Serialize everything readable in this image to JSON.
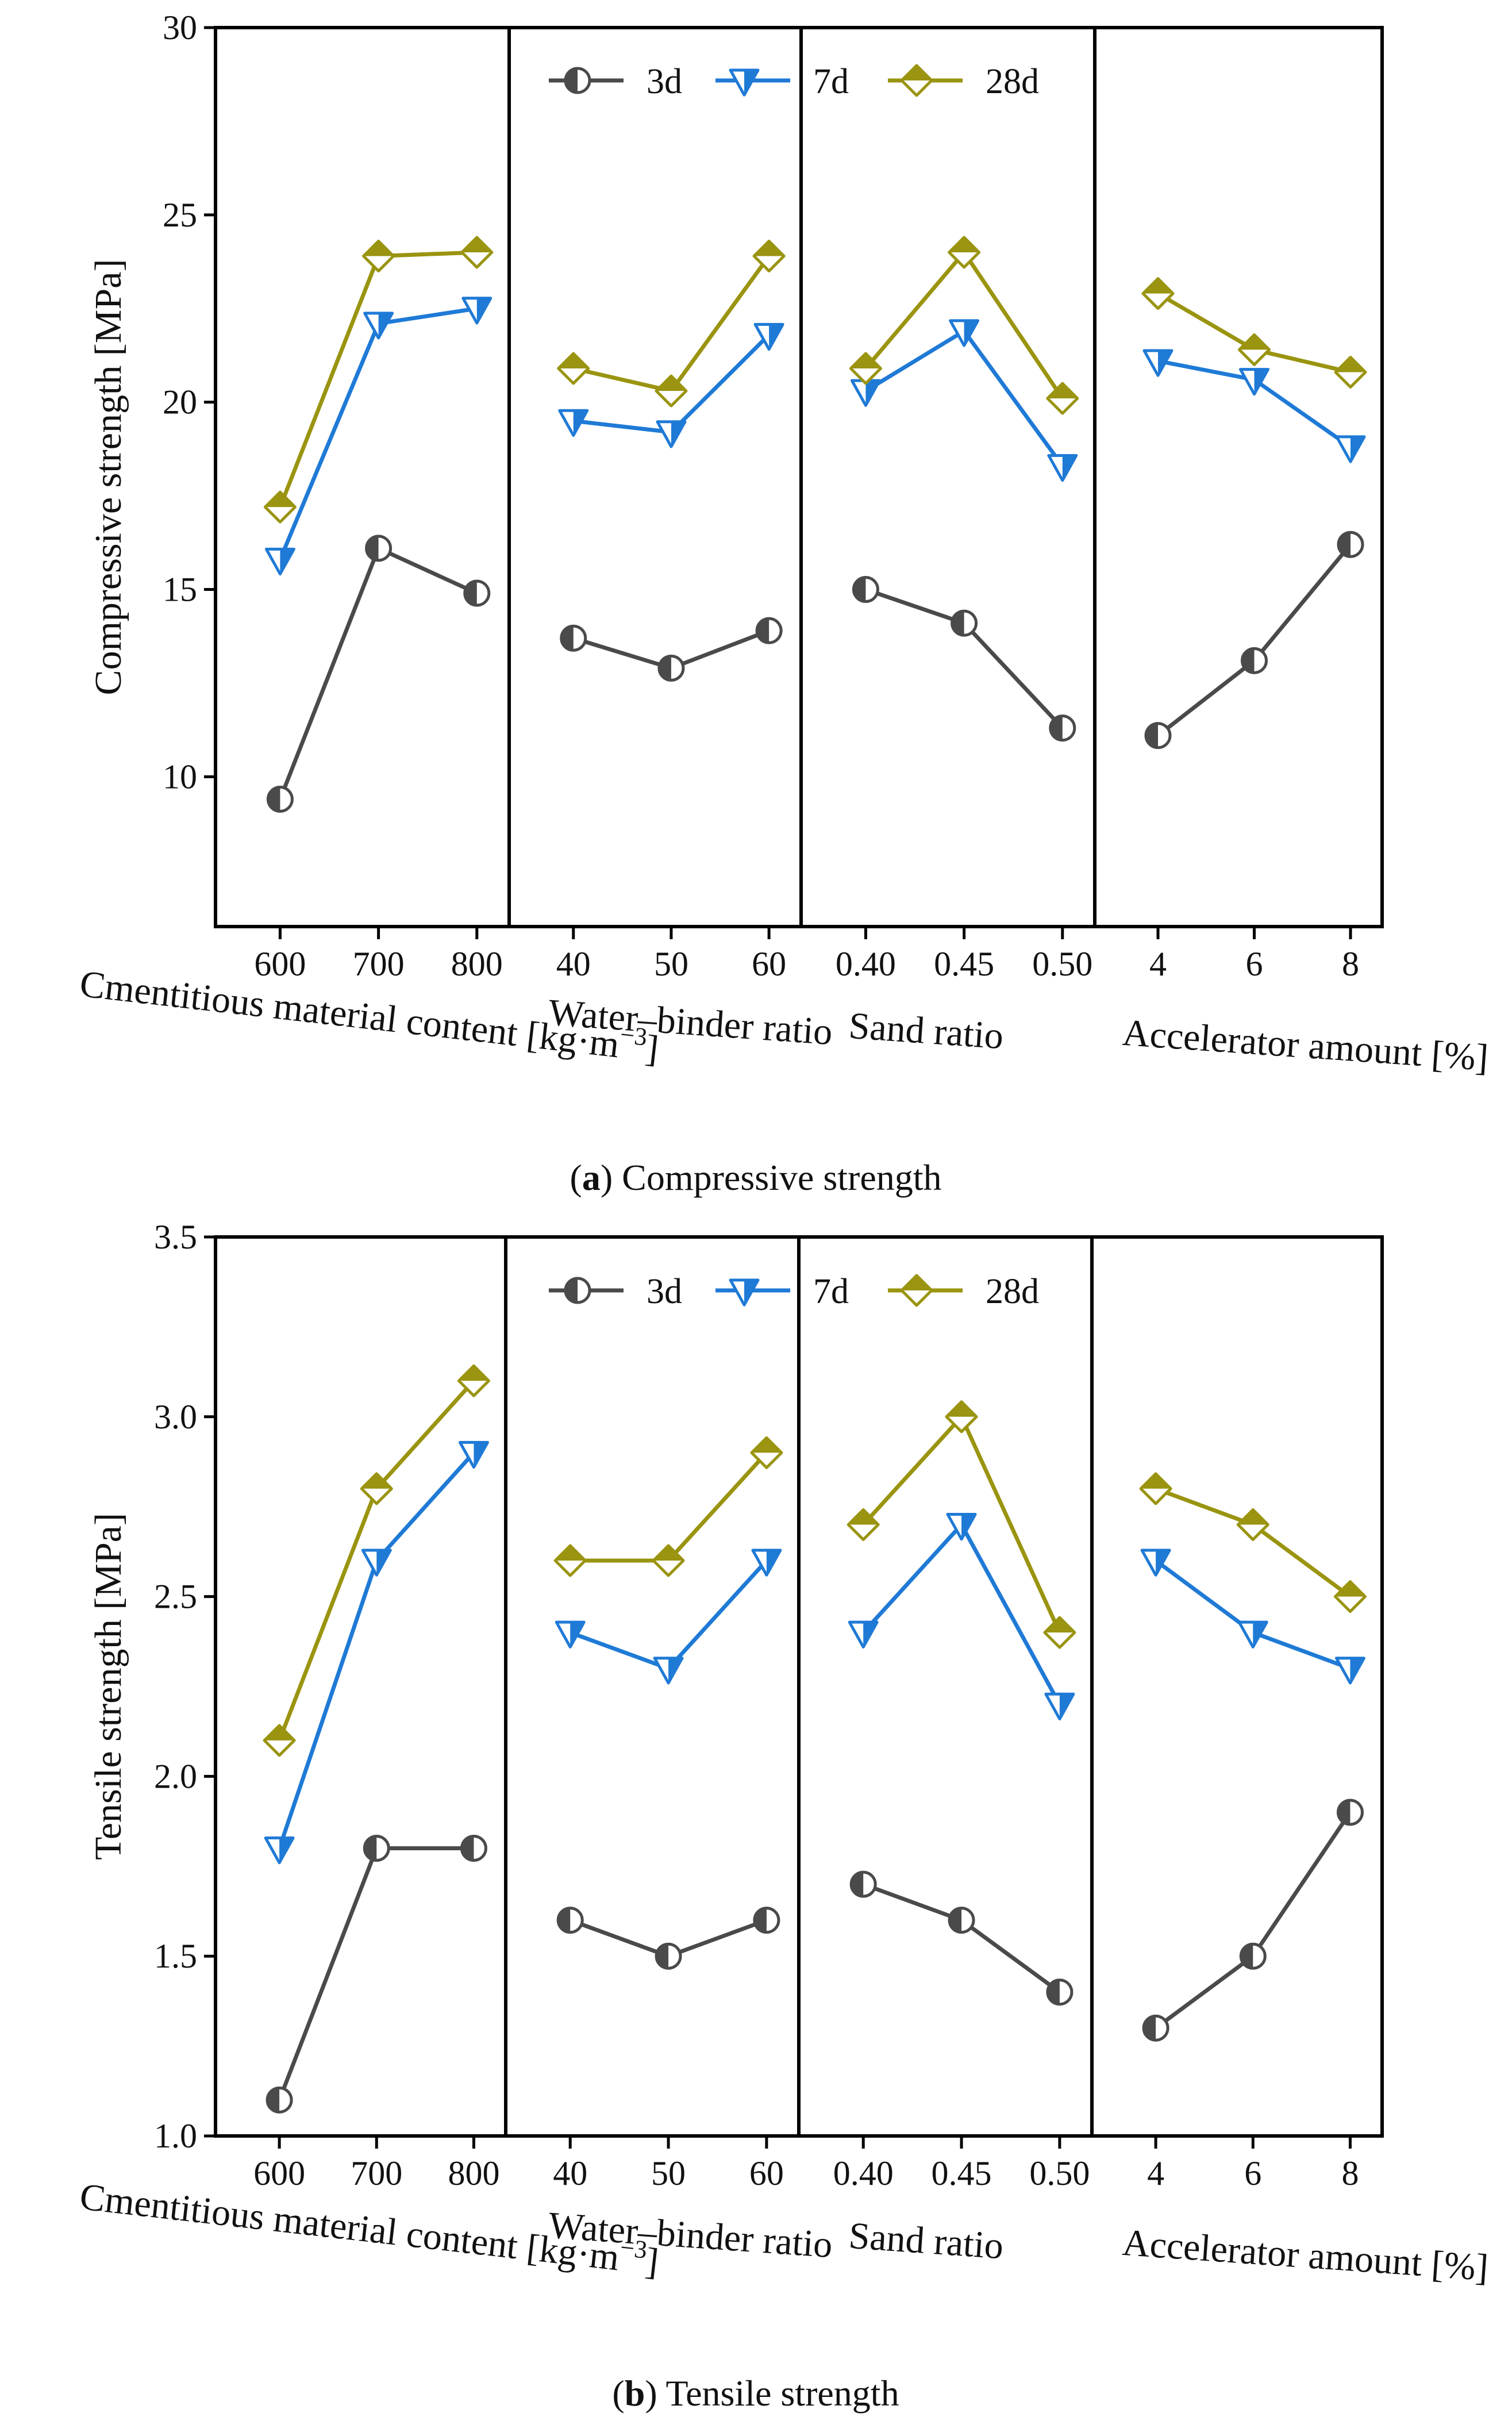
{
  "chart_data": [
    {
      "type": "line",
      "ylabel": "Compressive strength [MPa]",
      "ylim": [
        6,
        30
      ],
      "yticks": [
        "10",
        "15",
        "20",
        "25",
        "30"
      ],
      "caption_letter": "a",
      "caption_text": "Compressive strength",
      "legend": [
        "3d",
        "7d",
        "28d"
      ],
      "groups": [
        {
          "xlabel": "Cmentitious material content [kg·m",
          "xlabel_sup": "−3",
          "xlabel_end": "]",
          "categories": [
            "600",
            "700",
            "800"
          ],
          "series": [
            {
              "name": "3d",
              "values": [
                9.4,
                16.1,
                14.9
              ]
            },
            {
              "name": "7d",
              "values": [
                15.8,
                22.1,
                22.5
              ]
            },
            {
              "name": "28d",
              "values": [
                17.2,
                23.9,
                24.0
              ]
            }
          ]
        },
        {
          "xlabel": "Water–binder ratio",
          "categories": [
            "40",
            "50",
            "60"
          ],
          "series": [
            {
              "name": "3d",
              "values": [
                13.7,
                12.9,
                13.9
              ]
            },
            {
              "name": "7d",
              "values": [
                19.5,
                19.2,
                21.8
              ]
            },
            {
              "name": "28d",
              "values": [
                20.9,
                20.3,
                23.9
              ]
            }
          ]
        },
        {
          "xlabel": "Sand ratio",
          "categories": [
            "0.40",
            "0.45",
            "0.50"
          ],
          "series": [
            {
              "name": "3d",
              "values": [
                15.0,
                14.1,
                11.3
              ]
            },
            {
              "name": "7d",
              "values": [
                20.3,
                21.9,
                18.3
              ]
            },
            {
              "name": "28d",
              "values": [
                20.9,
                24.0,
                20.1
              ]
            }
          ]
        },
        {
          "xlabel": "Accelerator amount [%]",
          "categories": [
            "4",
            "6",
            "8"
          ],
          "series": [
            {
              "name": "3d",
              "values": [
                11.1,
                13.1,
                16.2
              ]
            },
            {
              "name": "7d",
              "values": [
                21.1,
                20.6,
                18.8
              ]
            },
            {
              "name": "28d",
              "values": [
                22.9,
                21.4,
                20.8
              ]
            }
          ]
        }
      ]
    },
    {
      "type": "line",
      "ylabel": "Tensile strength [MPa]",
      "ylim": [
        1.0,
        3.5
      ],
      "yticks": [
        "1.0",
        "1.5",
        "2.0",
        "2.5",
        "3.0",
        "3.5"
      ],
      "caption_letter": "b",
      "caption_text": "Tensile strength",
      "legend": [
        "3d",
        "7d",
        "28d"
      ],
      "groups": [
        {
          "xlabel": "Cmentitious material content [kg·m",
          "xlabel_sup": "−3",
          "xlabel_end": "]",
          "categories": [
            "600",
            "700",
            "800"
          ],
          "series": [
            {
              "name": "3d",
              "values": [
                1.1,
                1.8,
                1.8
              ]
            },
            {
              "name": "7d",
              "values": [
                1.8,
                2.6,
                2.9
              ]
            },
            {
              "name": "28d",
              "values": [
                2.1,
                2.8,
                3.1
              ]
            }
          ]
        },
        {
          "xlabel": "Water–binder ratio",
          "categories": [
            "40",
            "50",
            "60"
          ],
          "series": [
            {
              "name": "3d",
              "values": [
                1.6,
                1.5,
                1.6
              ]
            },
            {
              "name": "7d",
              "values": [
                2.4,
                2.3,
                2.6
              ]
            },
            {
              "name": "28d",
              "values": [
                2.6,
                2.6,
                2.9
              ]
            }
          ]
        },
        {
          "xlabel": "Sand ratio",
          "categories": [
            "0.40",
            "0.45",
            "0.50"
          ],
          "series": [
            {
              "name": "3d",
              "values": [
                1.7,
                1.6,
                1.4
              ]
            },
            {
              "name": "7d",
              "values": [
                2.4,
                2.7,
                2.2
              ]
            },
            {
              "name": "28d",
              "values": [
                2.7,
                3.0,
                2.4
              ]
            }
          ]
        },
        {
          "xlabel": "Accelerator amount [%]",
          "categories": [
            "4",
            "6",
            "8"
          ],
          "series": [
            {
              "name": "3d",
              "values": [
                1.3,
                1.5,
                1.9
              ]
            },
            {
              "name": "7d",
              "values": [
                2.6,
                2.4,
                2.3
              ]
            },
            {
              "name": "28d",
              "values": [
                2.8,
                2.7,
                2.5
              ]
            }
          ]
        }
      ]
    }
  ],
  "colors": {
    "3d": "#4a4a4a",
    "7d": "#1f7ad6",
    "28d": "#9a9410"
  }
}
